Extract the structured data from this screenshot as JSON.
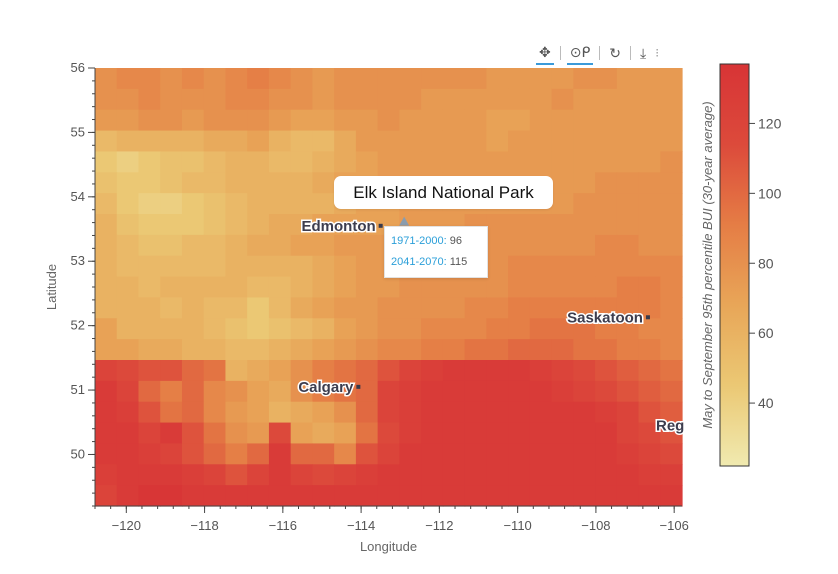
{
  "toolbar": {
    "items": [
      {
        "name": "pan-tool-icon",
        "glyph": "✥",
        "active": true
      },
      {
        "name": "wheel-zoom-tool-icon",
        "glyph": "⊙ᑭ",
        "active": true
      },
      {
        "name": "reset-tool-icon",
        "glyph": "↻",
        "active": false
      },
      {
        "name": "save-tool-icon",
        "glyph": "⤓",
        "active": false
      }
    ]
  },
  "tooltip": {
    "row1_key": "1971-2000:",
    "row1_val": "96",
    "row2_key": "2041-2070:",
    "row2_val": "115"
  },
  "park_label": "Elk Island National Park",
  "chart_data": {
    "type": "heatmap",
    "xlabel": "Longitude",
    "ylabel": "Latitude",
    "xlim": [
      -120.8,
      -105.8
    ],
    "ylim": [
      49.2,
      56.0
    ],
    "xticks": [
      -120,
      -118,
      -116,
      -114,
      -112,
      -110,
      -108,
      -106
    ],
    "yticks": [
      50,
      51,
      52,
      53,
      54,
      55,
      56
    ],
    "colorbar": {
      "label": "May to September 95th percentile BUI (30-year average)",
      "range": [
        22,
        137
      ],
      "ticks": [
        40,
        60,
        80,
        100,
        120
      ],
      "colors": [
        "#f0eab0",
        "#ebc874",
        "#e8a658",
        "#e57d45",
        "#dc4a3b",
        "#d83436"
      ]
    },
    "grid": {
      "rows": 21,
      "cols": 27,
      "values_top_to_bottom": [
        [
          80,
          85,
          85,
          80,
          85,
          80,
          85,
          90,
          85,
          80,
          75,
          80,
          80,
          80,
          80,
          80,
          80,
          80,
          75,
          75,
          75,
          75,
          80,
          80,
          75,
          75,
          75
        ],
        [
          80,
          80,
          85,
          80,
          80,
          80,
          85,
          85,
          80,
          80,
          75,
          80,
          80,
          80,
          80,
          75,
          75,
          75,
          75,
          75,
          75,
          80,
          75,
          75,
          75,
          75,
          75
        ],
        [
          75,
          75,
          80,
          80,
          75,
          80,
          80,
          80,
          75,
          70,
          70,
          75,
          75,
          80,
          75,
          75,
          75,
          75,
          70,
          70,
          75,
          75,
          75,
          75,
          75,
          75,
          75
        ],
        [
          55,
          60,
          60,
          60,
          60,
          65,
          65,
          70,
          60,
          55,
          55,
          65,
          75,
          75,
          75,
          75,
          75,
          75,
          70,
          75,
          75,
          75,
          75,
          75,
          75,
          75,
          75
        ],
        [
          45,
          40,
          45,
          50,
          50,
          55,
          60,
          60,
          55,
          55,
          60,
          65,
          70,
          75,
          75,
          75,
          75,
          75,
          75,
          75,
          75,
          75,
          75,
          75,
          75,
          75,
          80
        ],
        [
          50,
          45,
          45,
          50,
          55,
          55,
          60,
          60,
          60,
          60,
          65,
          70,
          70,
          75,
          75,
          75,
          75,
          75,
          75,
          75,
          75,
          75,
          75,
          80,
          80,
          80,
          80
        ],
        [
          55,
          45,
          40,
          40,
          45,
          50,
          55,
          60,
          60,
          60,
          60,
          65,
          70,
          70,
          75,
          75,
          75,
          75,
          75,
          75,
          75,
          75,
          80,
          80,
          80,
          80,
          80
        ],
        [
          60,
          50,
          45,
          45,
          45,
          50,
          55,
          60,
          65,
          65,
          70,
          70,
          70,
          70,
          75,
          75,
          75,
          80,
          80,
          80,
          80,
          80,
          80,
          80,
          80,
          80,
          80
        ],
        [
          60,
          55,
          50,
          50,
          55,
          55,
          60,
          65,
          65,
          70,
          70,
          75,
          75,
          75,
          75,
          80,
          80,
          80,
          80,
          80,
          80,
          80,
          80,
          85,
          85,
          80,
          80
        ],
        [
          60,
          55,
          55,
          55,
          55,
          55,
          60,
          60,
          60,
          60,
          65,
          70,
          75,
          75,
          80,
          80,
          80,
          80,
          80,
          85,
          85,
          85,
          85,
          85,
          85,
          85,
          85
        ],
        [
          60,
          60,
          55,
          60,
          60,
          60,
          60,
          55,
          55,
          60,
          65,
          70,
          75,
          75,
          80,
          80,
          80,
          80,
          80,
          85,
          85,
          85,
          85,
          85,
          90,
          90,
          85
        ],
        [
          60,
          60,
          60,
          55,
          60,
          55,
          55,
          45,
          55,
          65,
          70,
          75,
          75,
          80,
          80,
          80,
          80,
          85,
          85,
          90,
          90,
          90,
          90,
          90,
          90,
          90,
          85
        ],
        [
          70,
          60,
          60,
          60,
          60,
          55,
          50,
          45,
          50,
          55,
          60,
          70,
          75,
          80,
          80,
          85,
          85,
          85,
          90,
          90,
          95,
          95,
          95,
          90,
          90,
          85,
          85
        ],
        [
          70,
          70,
          65,
          65,
          60,
          60,
          55,
          55,
          60,
          65,
          70,
          75,
          80,
          85,
          85,
          90,
          90,
          95,
          95,
          100,
          100,
          100,
          95,
          95,
          90,
          90,
          85
        ],
        [
          120,
          115,
          110,
          110,
          100,
          95,
          60,
          65,
          70,
          80,
          90,
          95,
          100,
          110,
          120,
          125,
          130,
          130,
          130,
          130,
          125,
          120,
          115,
          110,
          105,
          100,
          95
        ],
        [
          130,
          120,
          100,
          90,
          100,
          85,
          80,
          70,
          65,
          80,
          90,
          95,
          100,
          120,
          125,
          130,
          130,
          130,
          130,
          130,
          130,
          125,
          120,
          115,
          110,
          105,
          100
        ],
        [
          130,
          125,
          110,
          95,
          100,
          85,
          75,
          70,
          60,
          65,
          70,
          80,
          100,
          120,
          125,
          130,
          130,
          130,
          130,
          130,
          130,
          130,
          130,
          125,
          120,
          110,
          105
        ],
        [
          130,
          130,
          120,
          130,
          110,
          95,
          80,
          75,
          115,
          70,
          65,
          70,
          95,
          115,
          125,
          130,
          130,
          130,
          130,
          130,
          130,
          130,
          130,
          130,
          120,
          115,
          110
        ],
        [
          130,
          130,
          125,
          120,
          110,
          100,
          90,
          100,
          130,
          100,
          100,
          85,
          110,
          120,
          130,
          130,
          130,
          130,
          130,
          130,
          130,
          130,
          130,
          130,
          125,
          120,
          115
        ],
        [
          125,
          130,
          130,
          130,
          125,
          120,
          110,
          120,
          130,
          120,
          115,
          120,
          125,
          130,
          130,
          130,
          130,
          130,
          130,
          130,
          130,
          130,
          130,
          130,
          130,
          125,
          125
        ],
        [
          120,
          130,
          135,
          135,
          130,
          130,
          130,
          130,
          130,
          130,
          130,
          130,
          130,
          130,
          130,
          130,
          130,
          130,
          130,
          130,
          130,
          130,
          130,
          130,
          130,
          130,
          130
        ]
      ]
    },
    "cities": [
      {
        "name": "Edmonton",
        "lon": -113.5,
        "lat": 53.55
      },
      {
        "name": "Calgary",
        "lon": -114.07,
        "lat": 51.05
      },
      {
        "name": "Saskatoon",
        "lon": -106.67,
        "lat": 52.13
      },
      {
        "name": "Reg",
        "lon": -105.3,
        "lat": 50.45
      }
    ],
    "marker": {
      "name": "Elk Island National Park",
      "lon": -112.9,
      "lat": 53.6
    }
  }
}
